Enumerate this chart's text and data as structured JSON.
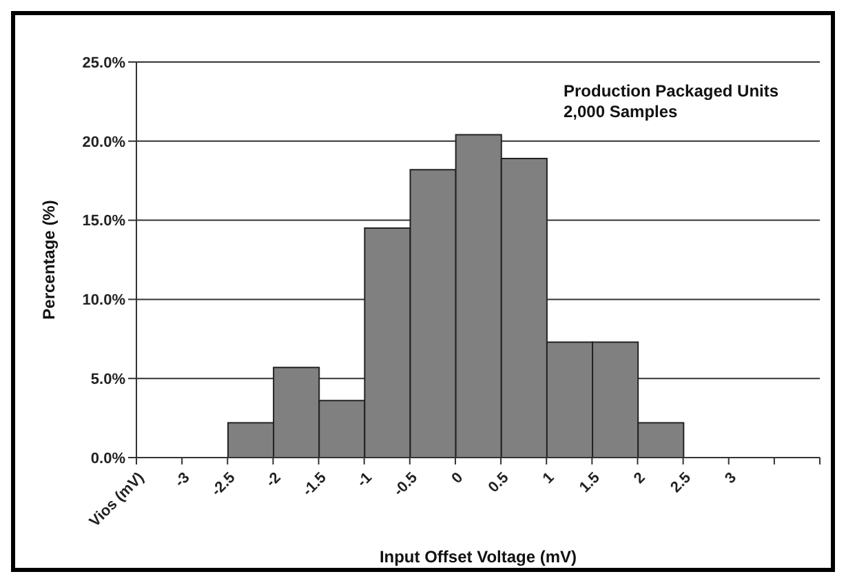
{
  "chart_data": {
    "type": "histogram",
    "xlabel": "Input Offset Voltage (mV)",
    "ylabel": "Percentage (%)",
    "annotations": [
      "Production Packaged Units",
      "2,000 Samples"
    ],
    "bins": [
      -3,
      -2.5,
      -2,
      -1.5,
      -1,
      -0.5,
      0,
      0.5,
      1,
      1.5,
      2,
      2.5,
      3
    ],
    "values": [
      0,
      2.2,
      5.7,
      3.6,
      14.5,
      18.2,
      20.4,
      18.9,
      7.3,
      7.3,
      2.2,
      0
    ],
    "color": "#808080",
    "xlim": [
      -3.5,
      4
    ],
    "xticks": [
      {
        "value": -3.5,
        "label": "Vios (mV)"
      },
      -3,
      -2.5,
      -2,
      -1.5,
      -1,
      -0.5,
      0,
      0.5,
      1,
      1.5,
      2,
      2.5,
      3,
      {
        "value": 3.5,
        "label": null
      },
      {
        "value": 4,
        "label": null
      }
    ],
    "ylim": [
      0,
      25
    ],
    "yticks": [
      {
        "value": 0,
        "label": "0.0%"
      },
      {
        "value": 5,
        "label": "5.0%"
      },
      {
        "value": 10,
        "label": "10.0%"
      },
      {
        "value": 15,
        "label": "15.0%"
      },
      {
        "value": 20,
        "label": "20.0%"
      },
      {
        "value": 25,
        "label": "25.0%"
      }
    ],
    "grid": "y"
  }
}
